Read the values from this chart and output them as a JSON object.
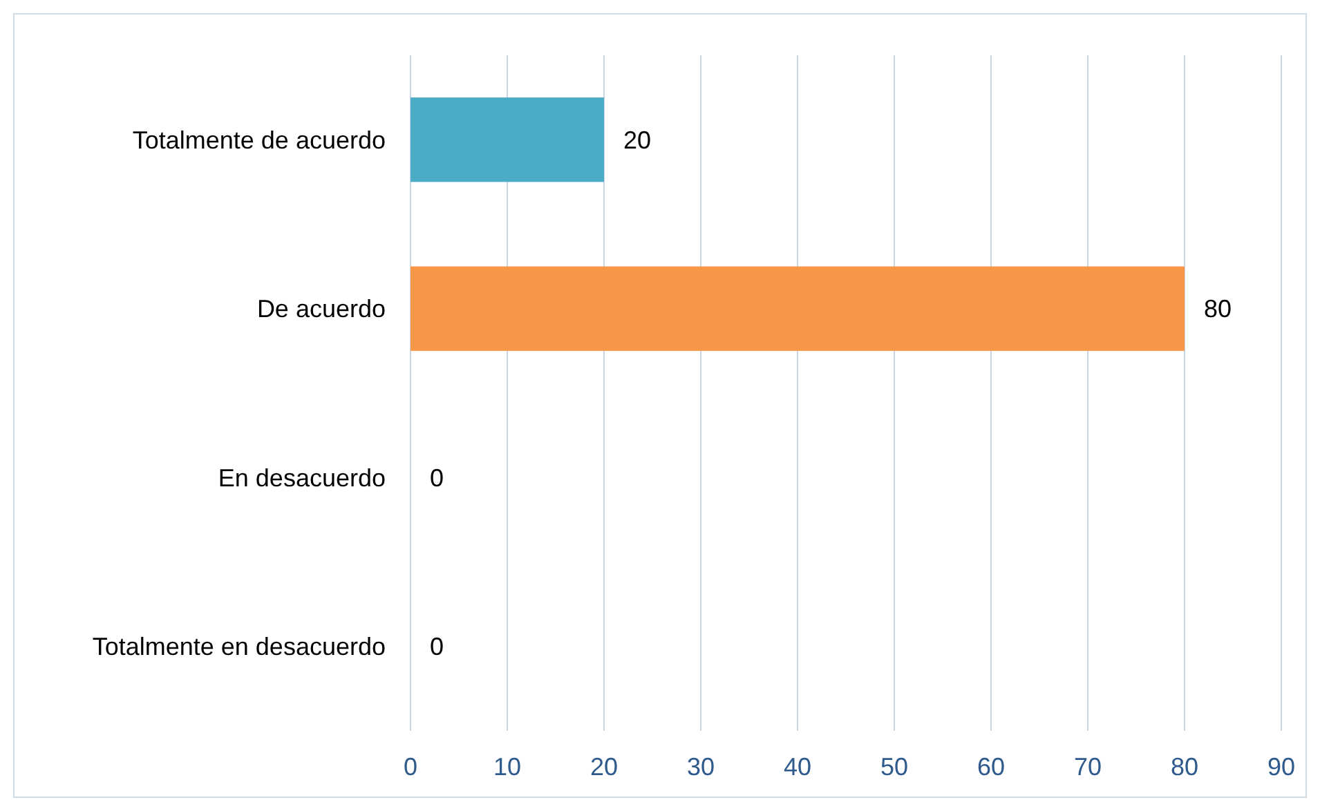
{
  "chart_data": {
    "type": "bar",
    "orientation": "horizontal",
    "categories": [
      "Totalmente de acuerdo",
      "De acuerdo",
      "En desacuerdo",
      "Totalmente en desacuerdo"
    ],
    "values": [
      20,
      80,
      0,
      0
    ],
    "colors": [
      "#4bacc6",
      "#f79646",
      "#4bacc6",
      "#4bacc6"
    ],
    "xlim": [
      0,
      90
    ],
    "xticks": [
      0,
      10,
      20,
      30,
      40,
      50,
      60,
      70,
      80,
      90
    ],
    "grid": "x",
    "data_labels": true
  }
}
